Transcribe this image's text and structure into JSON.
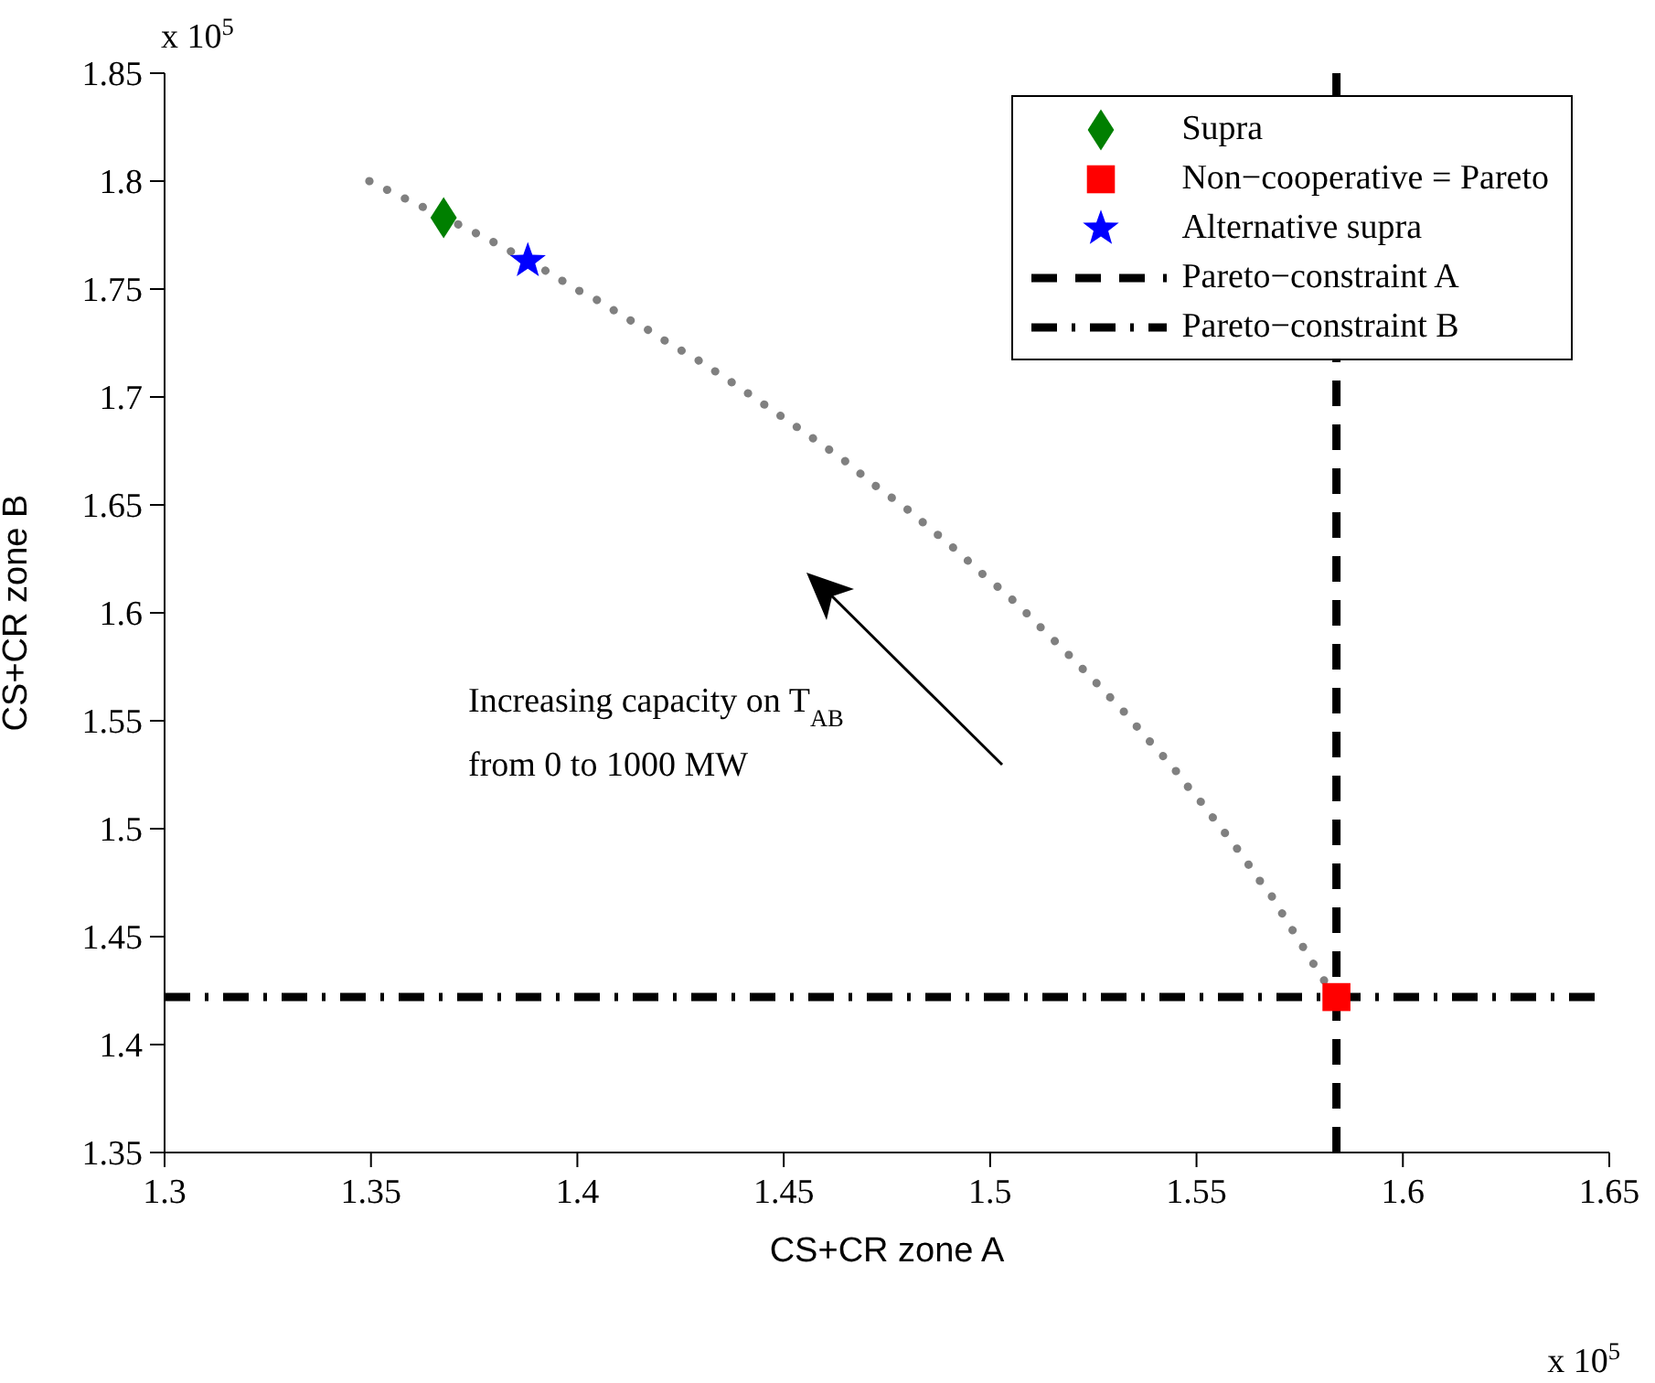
{
  "chart_data": {
    "type": "line",
    "xlabel": "CS+CR zone A",
    "ylabel": "CS+CR zone B",
    "xlim": [
      1.3,
      1.65
    ],
    "xticks": [
      1.3,
      1.35,
      1.4,
      1.45,
      1.5,
      1.55,
      1.6,
      1.65
    ],
    "ylim": [
      1.35,
      1.85
    ],
    "yticks": [
      1.35,
      1.4,
      1.45,
      1.5,
      1.55,
      1.6,
      1.65,
      1.7,
      1.75,
      1.8,
      1.85
    ],
    "grid": false,
    "legend": "top right",
    "annotations": [
      "Increasing capacity on T$_{AB}$",
      "from 0 to 1000 MW",
      "x 10$^{5}$",
      "x 10$^{5}$"
    ],
    "series": [
      {
        "color": "#808080",
        "line_style": "dotted",
        "marker": "none",
        "x": [
          1.3496,
          1.356,
          1.3626,
          1.3753,
          1.3815,
          1.3937,
          1.3996,
          1.4057,
          1.4114,
          1.4172,
          1.4229,
          1.4285,
          1.4341,
          1.4396,
          1.4449,
          1.4502,
          1.4555,
          1.4607,
          1.4658,
          1.4707,
          1.4757,
          1.4806,
          1.4855,
          1.49,
          1.4947,
          1.4993,
          1.5038,
          1.5082,
          1.5124,
          1.5167,
          1.5209,
          1.525,
          1.529,
          1.533,
          1.537,
          1.5408,
          1.5445,
          1.5481,
          1.5517,
          1.5552,
          1.5586,
          1.562,
          1.5653,
          1.5685,
          1.5716,
          1.5746,
          1.5775,
          1.5804,
          1.5839
        ],
        "values": [
          1.8,
          1.794,
          1.788,
          1.776,
          1.77,
          1.757,
          1.75,
          1.744,
          1.737,
          1.731,
          1.724,
          1.718,
          1.711,
          1.704,
          1.697,
          1.69,
          1.683,
          1.676,
          1.669,
          1.661,
          1.654,
          1.647,
          1.639,
          1.632,
          1.624,
          1.616,
          1.609,
          1.601,
          1.593,
          1.585,
          1.577,
          1.569,
          1.561,
          1.553,
          1.544,
          1.536,
          1.528,
          1.519,
          1.511,
          1.502,
          1.494,
          1.485,
          1.476,
          1.468,
          1.458,
          1.449,
          1.44,
          1.431,
          1.422
        ]
      },
      {
        "type": "scatter",
        "name": "Supra",
        "color": "#007f00",
        "marker": "diamond",
        "x": [
          1.3676
        ],
        "values": [
          1.783
        ]
      },
      {
        "type": "scatter",
        "name": "Non−cooperative = Pareto",
        "color": "#ff0000",
        "marker": "square",
        "x": [
          1.5839
        ],
        "values": [
          1.422
        ]
      },
      {
        "type": "scatter",
        "name": "Alternative supra",
        "color": "#0000ff",
        "marker": "star",
        "x": [
          1.388
        ],
        "values": [
          1.763
        ]
      }
    ],
    "ref_lines": [
      {
        "axis": "x",
        "value": 1.5839,
        "label": "Pareto−constraint A",
        "color": "#000000",
        "line_style": "dashed"
      },
      {
        "axis": "y",
        "value": 1.422,
        "label": "Pareto−constraint B",
        "color": "#000000",
        "line_style": "dashdot"
      }
    ]
  }
}
